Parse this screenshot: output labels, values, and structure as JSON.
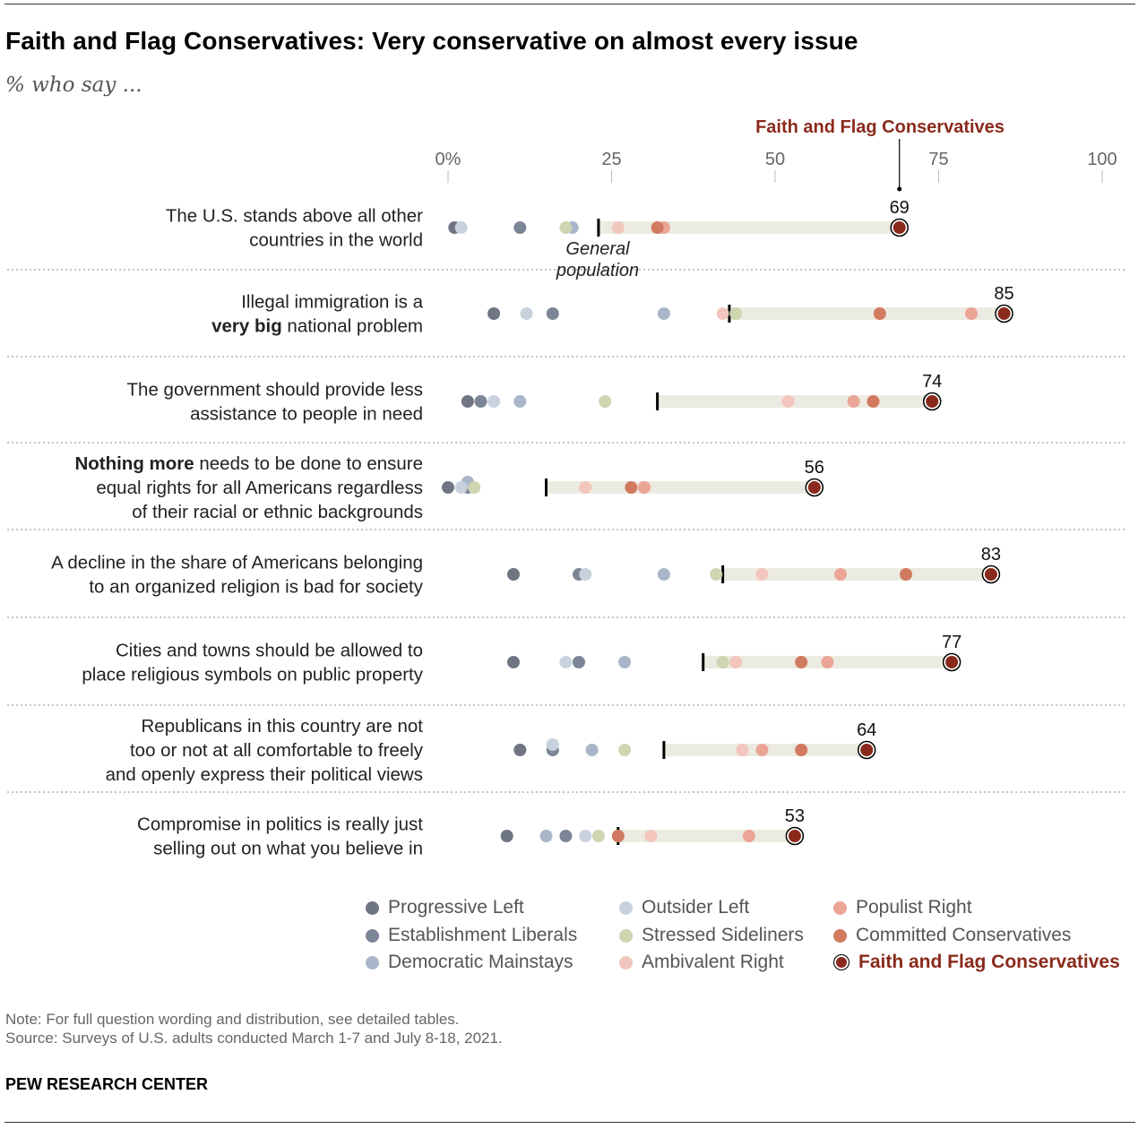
{
  "title": "Faith and Flag Conservatives: Very conservative on almost every issue",
  "subtitle": "% who say ...",
  "focus_label": "Faith and Flag Conservatives",
  "general_label_1": "General",
  "general_label_2": "population",
  "note": "Note: For full question wording and distribution, see detailed tables.",
  "source": "Source: Surveys of U.S. adults conducted March 1-7 and July 8-18, 2021.",
  "brand": "PEW RESEARCH CENTER",
  "colors": {
    "Progressive Left": "#6f7582",
    "Establishment Liberals": "#7d8696",
    "Democratic Mainstays": "#a9b6c9",
    "Outsider Left": "#c8d2de",
    "Stressed Sideliners": "#cdd5b1",
    "Ambivalent Right": "#f2c6bc",
    "Populist Right": "#eaa597",
    "Committed Conservatives": "#d27a60",
    "Faith and Flag Conservatives": "#8a2a1c",
    "band": "#ecebe1",
    "focus_text": "#8a2a1c"
  },
  "legend": [
    "Progressive Left",
    "Establishment Liberals",
    "Democratic Mainstays",
    "Outsider Left",
    "Stressed Sideliners",
    "Ambivalent Right",
    "Populist Right",
    "Committed Conservatives",
    "Faith and Flag Conservatives"
  ],
  "chart_data": {
    "type": "scatter",
    "subtype": "dot plot",
    "x_ticks": [
      "0%",
      "25",
      "50",
      "75",
      "100"
    ],
    "x_tick_values": [
      0,
      25,
      50,
      75,
      100
    ],
    "xlim": [
      0,
      100
    ],
    "series_order": [
      "Progressive Left",
      "Establishment Liberals",
      "Democratic Mainstays",
      "Outsider Left",
      "Stressed Sideliners",
      "Ambivalent Right",
      "Populist Right",
      "Committed Conservatives",
      "Faith and Flag Conservatives"
    ],
    "rows": [
      {
        "label": [
          [
            "The U.S. stands above all other"
          ],
          [
            "countries in the world"
          ]
        ],
        "general": 23,
        "focus_value": "69",
        "values": {
          "Progressive Left": 1,
          "Outsider Left": 2,
          "Establishment Liberals": 11,
          "Stressed Sideliners": 18,
          "Democratic Mainstays": 19,
          "Ambivalent Right": 26,
          "Committed Conservatives": 32,
          "Populist Right": 33,
          "Faith and Flag Conservatives": 69
        }
      },
      {
        "label": [
          [
            "Illegal immigration is a"
          ],
          [
            {
              "b": "very big"
            },
            " national problem"
          ]
        ],
        "general": 43,
        "focus_value": "85",
        "values": {
          "Progressive Left": 7,
          "Outsider Left": 12,
          "Establishment Liberals": 16,
          "Democratic Mainstays": 33,
          "Ambivalent Right": 42,
          "Stressed Sideliners": 44,
          "Committed Conservatives": 66,
          "Populist Right": 80,
          "Faith and Flag Conservatives": 85
        }
      },
      {
        "label": [
          [
            "The government should provide less"
          ],
          [
            "assistance to people in need"
          ]
        ],
        "general": 32,
        "focus_value": "74",
        "values": {
          "Progressive Left": 3,
          "Establishment Liberals": 5,
          "Outsider Left": 7,
          "Democratic Mainstays": 11,
          "Stressed Sideliners": 24,
          "Ambivalent Right": 52,
          "Populist Right": 62,
          "Committed Conservatives": 65,
          "Faith and Flag Conservatives": 74
        }
      },
      {
        "label": [
          [
            {
              "b": "Nothing more"
            },
            " needs to be done to ensure"
          ],
          [
            "equal rights for all Americans regardless"
          ],
          [
            "of their racial or ethnic backgrounds"
          ]
        ],
        "general": 15,
        "focus_value": "56",
        "values": {
          "Progressive Left": 0,
          "Outsider Left": 2,
          "Stressed Sideliners": 4,
          "Establishment Liberals": 3,
          "Democratic Mainstays": 3,
          "Ambivalent Right": 21,
          "Committed Conservatives": 28,
          "Populist Right": 30,
          "Faith and Flag Conservatives": 56
        }
      },
      {
        "label": [
          [
            "A decline in the share of Americans belonging"
          ],
          [
            "to an organized religion is bad for society"
          ]
        ],
        "general": 42,
        "focus_value": "83",
        "values": {
          "Progressive Left": 10,
          "Outsider Left": 21,
          "Establishment Liberals": 20,
          "Democratic Mainstays": 33,
          "Stressed Sideliners": 41,
          "Ambivalent Right": 48,
          "Populist Right": 60,
          "Committed Conservatives": 70,
          "Faith and Flag Conservatives": 83
        }
      },
      {
        "label": [
          [
            "Cities and towns should be allowed to"
          ],
          [
            "place religious symbols on public property"
          ]
        ],
        "general": 39,
        "focus_value": "77",
        "values": {
          "Progressive Left": 10,
          "Outsider Left": 18,
          "Establishment Liberals": 20,
          "Democratic Mainstays": 27,
          "Stressed Sideliners": 42,
          "Ambivalent Right": 44,
          "Committed Conservatives": 54,
          "Populist Right": 58,
          "Faith and Flag Conservatives": 77
        }
      },
      {
        "label": [
          [
            "Republicans in this country are not"
          ],
          [
            "too or not at all comfortable to freely"
          ],
          [
            "and openly express their political views"
          ]
        ],
        "general": 33,
        "focus_value": "64",
        "values": {
          "Progressive Left": 11,
          "Outsider Left": 16,
          "Establishment Liberals": 16,
          "Democratic Mainstays": 22,
          "Stressed Sideliners": 27,
          "Ambivalent Right": 45,
          "Populist Right": 48,
          "Committed Conservatives": 54,
          "Faith and Flag Conservatives": 64
        }
      },
      {
        "label": [
          [
            "Compromise in politics is really just"
          ],
          [
            "selling out on what you believe in"
          ]
        ],
        "general": 26,
        "focus_value": "53",
        "values": {
          "Progressive Left": 9,
          "Democratic Mainstays": 15,
          "Establishment Liberals": 18,
          "Outsider Left": 21,
          "Stressed Sideliners": 23,
          "Committed Conservatives": 26,
          "Ambivalent Right": 31,
          "Populist Right": 46,
          "Faith and Flag Conservatives": 53
        }
      }
    ]
  }
}
